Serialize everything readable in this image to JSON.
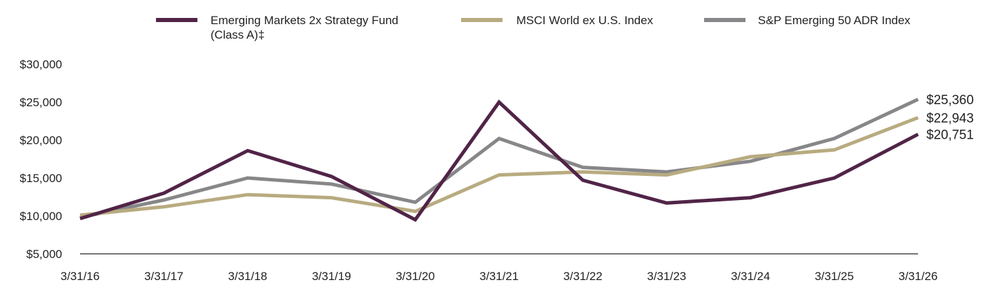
{
  "chart_data": {
    "type": "line",
    "title": "",
    "xlabel": "",
    "ylabel": "",
    "x": [
      "3/31/16",
      "3/31/17",
      "3/31/18",
      "3/31/19",
      "3/31/20",
      "3/31/21",
      "3/31/22",
      "3/31/23",
      "3/31/24",
      "3/31/25",
      "3/31/26"
    ],
    "y_ticks": [
      5000,
      10000,
      15000,
      20000,
      25000,
      30000
    ],
    "y_tick_labels": [
      "$5,000",
      "$10,000",
      "$15,000",
      "$20,000",
      "$25,000",
      "$30,000"
    ],
    "ylim": [
      5000,
      30000
    ],
    "grid": false,
    "legend_position": "top",
    "series": [
      {
        "name_lines": [
          "Emerging Markets 2x Strategy Fund",
          "(Class A)‡"
        ],
        "color": "#512447",
        "values": [
          9650,
          13000,
          18600,
          15200,
          9500,
          25000,
          14700,
          11700,
          12400,
          15000,
          20751
        ],
        "end_label": "$20,751"
      },
      {
        "name_lines": [
          "MSCI World ex U.S. Index"
        ],
        "color": "#b8ab80",
        "values": [
          10100,
          11200,
          12800,
          12400,
          10600,
          15400,
          15800,
          15400,
          17800,
          18700,
          22943
        ],
        "end_label": "$22,943"
      },
      {
        "name_lines": [
          "S&P Emerging 50 ADR Index"
        ],
        "color": "#878789",
        "values": [
          9800,
          12100,
          15000,
          14200,
          11800,
          20200,
          16400,
          15800,
          17200,
          20200,
          25360
        ],
        "end_label": "$25,360"
      }
    ]
  }
}
